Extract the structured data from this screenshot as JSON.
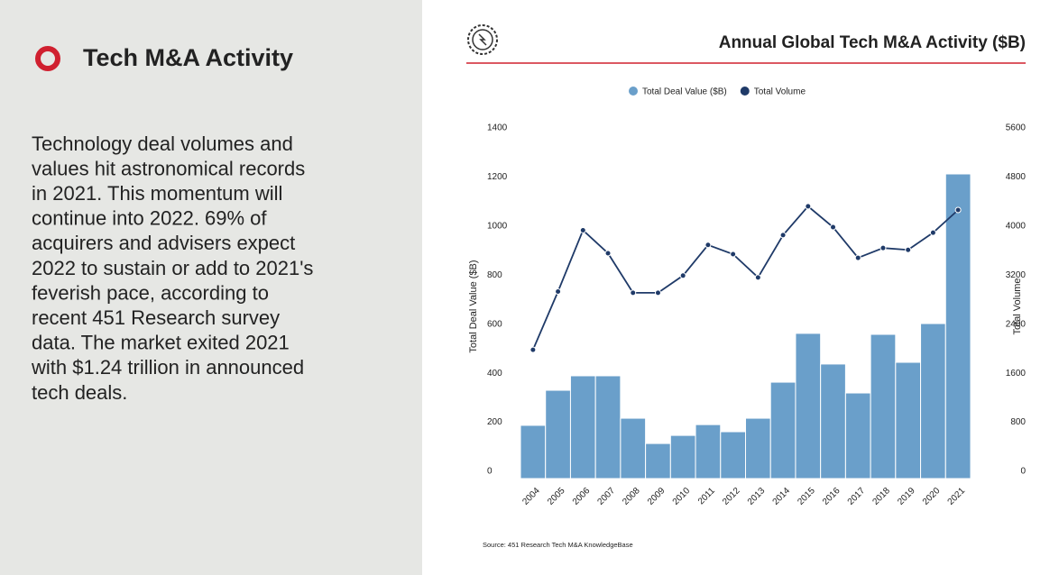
{
  "panel": {
    "title": "Tech M&A Activity",
    "body_lines": [
      "Technology deal volumes and",
      "values hit astronomical records",
      "in 2021. This momentum will",
      "continue into 2022. 69% of",
      "acquirers and advisers expect",
      "2022 to sustain or add to 2021's",
      "feverish pace, according to",
      "recent 451 Research survey",
      "data. The market exited 2021",
      "with $1.24 trillion in announced",
      "tech deals."
    ]
  },
  "chart_data": {
    "type": "bar",
    "title": "Annual Global Tech M&A Activity ($B)",
    "y_label": "Total Deal Value ($B)",
    "y2_label": "Total Volume",
    "source": "Source: 451 Research Tech M&A KnowledgeBase",
    "categories": [
      "2004",
      "2005",
      "2006",
      "2007",
      "2008",
      "2009",
      "2010",
      "2011",
      "2012",
      "2013",
      "2014",
      "2015",
      "2016",
      "2017",
      "2018",
      "2019",
      "2020",
      "2021"
    ],
    "series": [
      {
        "name": "Total Deal Value ($B)",
        "type": "bar",
        "color": "#6a9fca",
        "values": [
          217,
          360,
          419,
          419,
          246,
          143,
          176,
          220,
          191,
          246,
          393,
          592,
          467,
          349,
          588,
          474,
          632,
          1242
        ]
      },
      {
        "name": "Total Volume",
        "type": "line",
        "axis": "y2",
        "color": "#1f3a68",
        "values": [
          2100,
          3050,
          4050,
          3675,
          3030,
          3030,
          3310,
          3810,
          3660,
          3280,
          3970,
          4440,
          4100,
          3600,
          3760,
          3730,
          4010,
          4380
        ]
      }
    ],
    "ylim": [
      0,
      1400
    ],
    "yticks": [
      0,
      200,
      400,
      600,
      800,
      1000,
      1200,
      1400
    ],
    "y2lim": [
      0,
      5600
    ],
    "y2ticks": [
      0,
      800,
      1600,
      2400,
      3200,
      4000,
      4800,
      5600
    ]
  }
}
